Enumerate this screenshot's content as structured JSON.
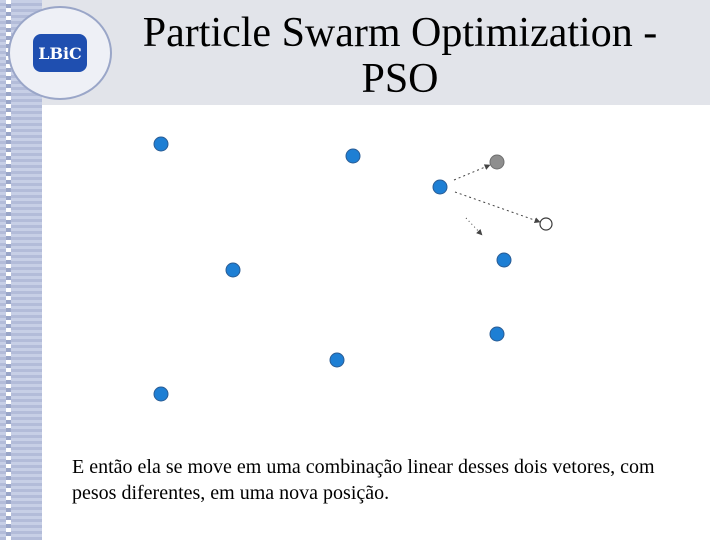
{
  "slide": {
    "title": "Particle Swarm Optimization - PSO",
    "logo_text": "LBiC",
    "caption": "E então ela se move em uma combinação linear desses dois vetores, com pesos diferentes, em uma nova posição."
  },
  "colors": {
    "particle": "#1e7fd4",
    "particle_stroke": "#2a5c94",
    "personal_best": "#8e8e8e",
    "new_position_stroke": "#3a3a3a",
    "vector": "#444444",
    "header_band": "#e2e4ea"
  }
}
